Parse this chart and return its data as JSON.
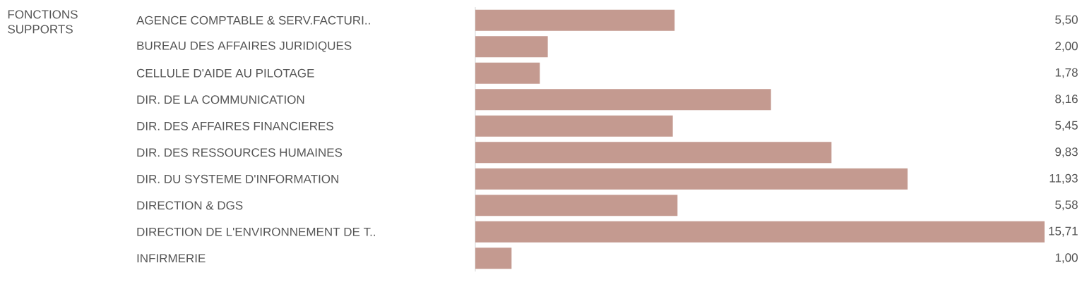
{
  "chart_data": {
    "type": "bar",
    "orientation": "horizontal",
    "title": "FONCTIONS SUPPORTS",
    "categories": [
      "AGENCE COMPTABLE & SERV.FACTURI..",
      "BUREAU DES AFFAIRES JURIDIQUES",
      "CELLULE D'AIDE AU PILOTAGE",
      "DIR. DE LA COMMUNICATION",
      "DIR. DES AFFAIRES FINANCIERES",
      "DIR. DES RESSOURCES HUMAINES",
      "DIR. DU SYSTEME D'INFORMATION",
      "DIRECTION & DGS",
      "DIRECTION DE L'ENVIRONNEMENT DE T..",
      "INFIRMERIE"
    ],
    "values": [
      5.5,
      2.0,
      1.78,
      8.16,
      5.45,
      9.83,
      11.93,
      5.58,
      15.71,
      1.0
    ],
    "value_labels": [
      "5,50",
      "2,00",
      "1,78",
      "8,16",
      "5,45",
      "9,83",
      "11,93",
      "5,58",
      "15,71",
      "1,00"
    ],
    "color": "#c49a90"
  }
}
